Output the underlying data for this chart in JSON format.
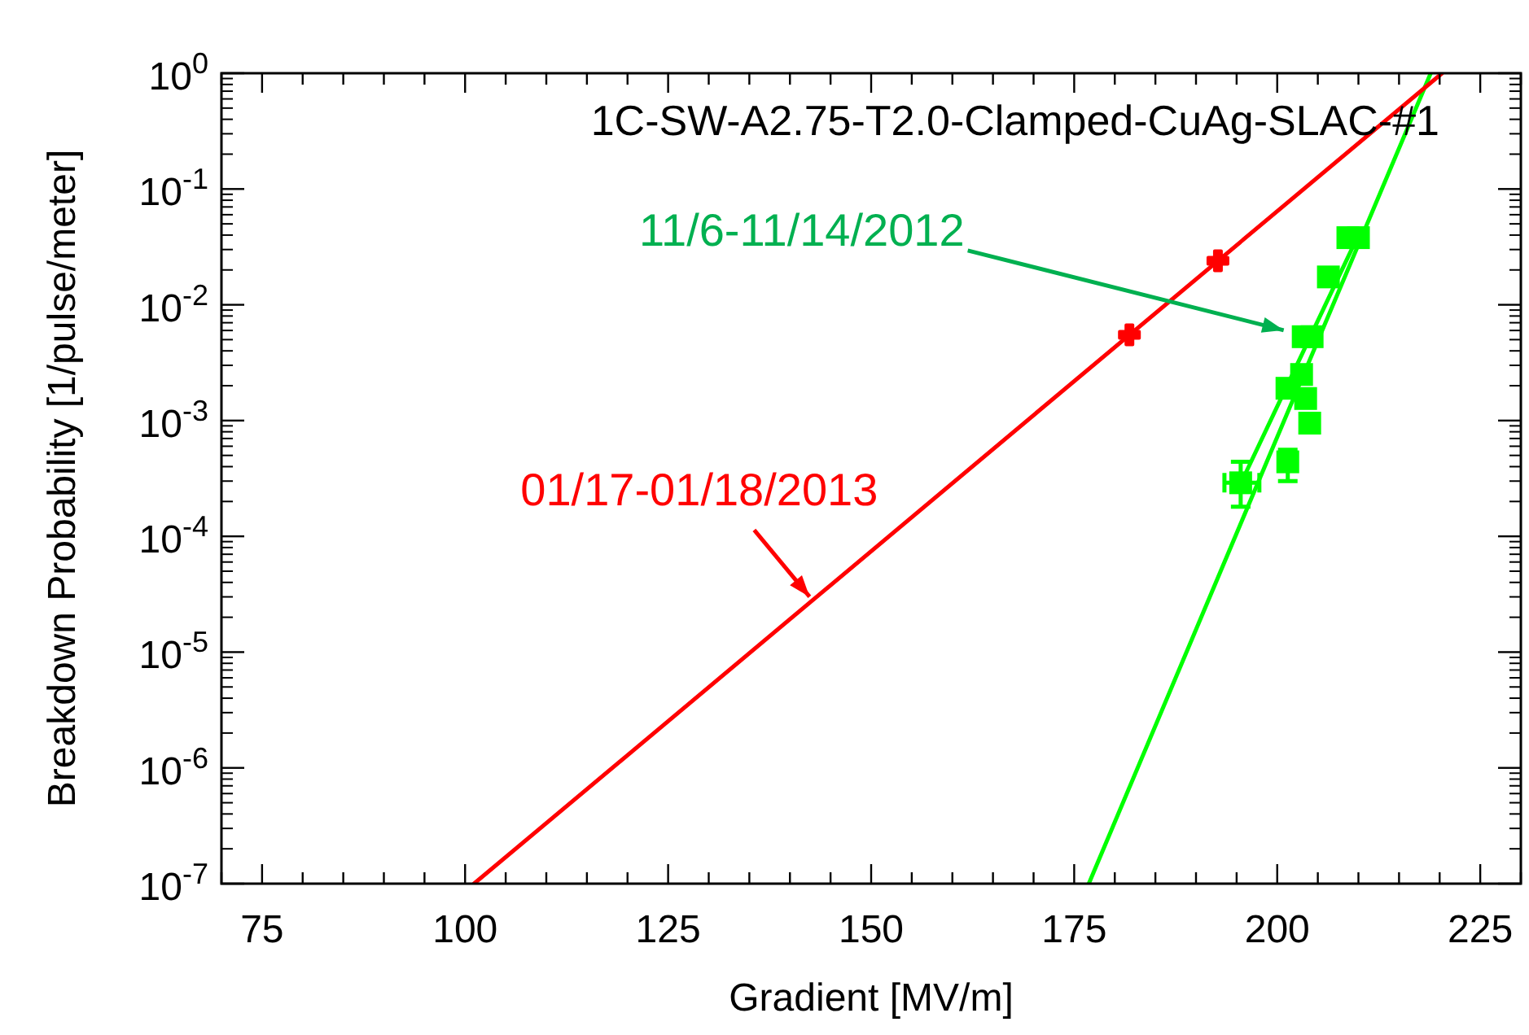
{
  "chart_data": {
    "type": "scatter",
    "title": "1C-SW-A2.75-T2.0-Clamped-CuAg-SLAC-#1",
    "xlabel": "Gradient   [MV/m]",
    "ylabel": "Breakdown Probability [1/pulse/meter]",
    "log": "y",
    "grid": false,
    "legend": false,
    "xlim": [
      70,
      230
    ],
    "ylim": [
      1e-07,
      1
    ],
    "xticks": [
      {
        "value": 70,
        "label": null
      },
      75,
      {
        "value": 80,
        "label": null
      },
      {
        "value": 85,
        "label": null
      },
      {
        "value": 90,
        "label": null
      },
      {
        "value": 95,
        "label": null
      },
      100,
      {
        "value": 105,
        "label": null
      },
      {
        "value": 110,
        "label": null
      },
      {
        "value": 115,
        "label": null
      },
      {
        "value": 120,
        "label": null
      },
      125,
      {
        "value": 130,
        "label": null
      },
      {
        "value": 135,
        "label": null
      },
      {
        "value": 140,
        "label": null
      },
      {
        "value": 145,
        "label": null
      },
      150,
      {
        "value": 155,
        "label": null
      },
      {
        "value": 160,
        "label": null
      },
      {
        "value": 165,
        "label": null
      },
      {
        "value": 170,
        "label": null
      },
      175,
      {
        "value": 180,
        "label": null
      },
      {
        "value": 185,
        "label": null
      },
      {
        "value": 190,
        "label": null
      },
      {
        "value": 195,
        "label": null
      },
      200,
      {
        "value": 205,
        "label": null
      },
      {
        "value": 210,
        "label": null
      },
      {
        "value": 215,
        "label": null
      },
      {
        "value": 220,
        "label": null
      },
      225,
      {
        "value": 230,
        "label": null
      }
    ],
    "yticks": [
      {
        "value": 1e-07,
        "label": "10$^{-7}$"
      },
      {
        "value": 1e-06,
        "label": "10$^{-6}$"
      },
      {
        "value": 1e-05,
        "label": "10$^{-5}$"
      },
      {
        "value": 0.0001,
        "label": "10$^{-4}$"
      },
      {
        "value": 0.001,
        "label": "10$^{-3}$"
      },
      {
        "value": 0.01,
        "label": "10$^{-2}$"
      },
      {
        "value": 0.1,
        "label": "10$^{-1}$"
      },
      {
        "value": 1,
        "label": "10$^{0}$"
      }
    ],
    "series": [
      {
        "name": "11/6-11/14/2012",
        "type": "scatter",
        "marker": "square",
        "color": "#00ff00",
        "x": [
          195.5,
          201.3,
          201.2,
          203.0,
          203.5,
          204.0,
          203.2,
          204.3,
          206.3,
          208.7,
          210.0
        ],
        "values": [
          0.00029,
          0.00044,
          0.0019,
          0.0025,
          0.00155,
          0.00095,
          0.0053,
          0.0053,
          0.0174,
          0.038,
          0.038
        ],
        "errors": [
          [
            0.00018,
            0.00044
          ],
          [
            0.0003,
            0.00056
          ],
          null,
          null,
          null,
          null,
          null,
          null,
          null,
          null,
          null
        ],
        "xerrors": [
          [
            193.5,
            197.8
          ],
          null,
          null,
          null,
          null,
          null,
          null,
          null,
          null,
          null,
          null
        ]
      },
      {
        "type": "line",
        "color": "#00ff00",
        "x": [
          176.8,
          218.9
        ],
        "values": [
          1e-07,
          1
        ]
      },
      {
        "type": "line",
        "color": "#00ff00",
        "x": [
          196.1,
          210.0
        ],
        "values": [
          0.00035,
          0.04
        ]
      },
      {
        "name": "01/17-01/18/2013",
        "type": "scatter",
        "marker": "cross",
        "color": "#ff0000",
        "x": [
          181.8,
          192.7
        ],
        "values": [
          0.0055,
          0.024
        ]
      },
      {
        "type": "line",
        "color": "#ff0000",
        "x": [
          101.1,
          220.3
        ],
        "values": [
          1e-07,
          1
        ]
      }
    ]
  }
}
